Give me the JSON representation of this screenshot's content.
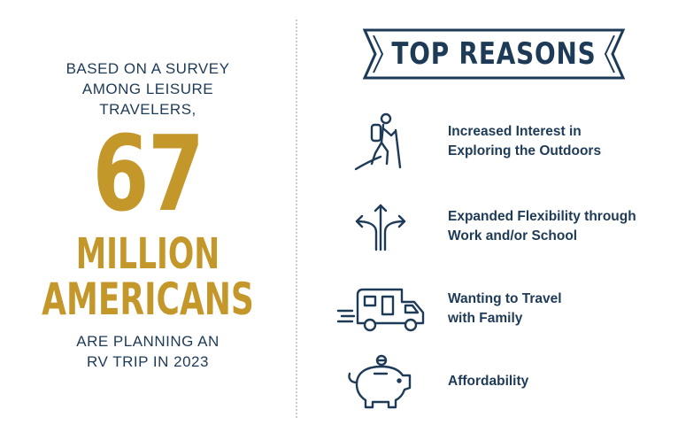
{
  "left": {
    "intro_lines": [
      "BASED ON A SURVEY",
      "AMONG LEISURE",
      "TRAVELERS,"
    ],
    "big_number": "67",
    "big_word_1": "MILLION",
    "big_word_2": "AMERICANS",
    "outro_lines": [
      "ARE PLANNING AN",
      "RV TRIP IN 2023"
    ]
  },
  "banner": {
    "title": "TOP REASONS"
  },
  "reasons": [
    {
      "icon": "hiker-icon",
      "lines": [
        "Increased Interest in",
        "Exploring the Outdoors"
      ]
    },
    {
      "icon": "diverging-arrows-icon",
      "lines": [
        "Expanded Flexibility through",
        "Work and/or School"
      ]
    },
    {
      "icon": "rv-camper-icon",
      "lines": [
        "Wanting to Travel",
        "with Family"
      ]
    },
    {
      "icon": "piggy-bank-icon",
      "lines": [
        "Affordability"
      ]
    }
  ],
  "colors": {
    "navy": "#1d3a57",
    "gold": "#c4972b",
    "divider": "#c9cdd3"
  }
}
